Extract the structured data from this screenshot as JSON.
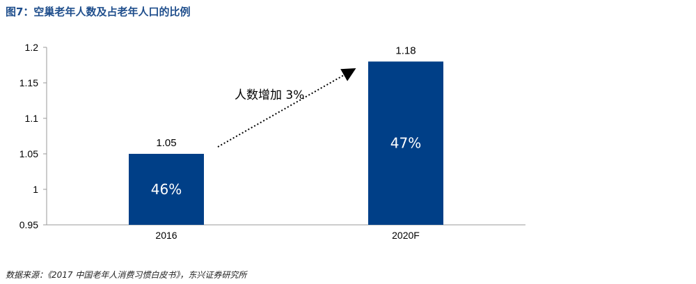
{
  "title": "图7：空巢老年人数及占老年人口的比例",
  "source": "数据来源：《2017 中国老年人消费习惯白皮书》，东兴证券研究所",
  "chart_data": {
    "type": "bar",
    "categories": [
      "2016",
      "2020F"
    ],
    "values": [
      1.05,
      1.18
    ],
    "data_labels": [
      "1.05",
      "1.18"
    ],
    "inner_labels": [
      "46%",
      "47%"
    ],
    "ylim": [
      0.95,
      1.2
    ],
    "yticks": [
      "0.95",
      "1",
      "1.05",
      "1.1",
      "1.15",
      "1.2"
    ],
    "grid": false,
    "bar_color": "#003f87",
    "annotation": "人数增加 3%"
  }
}
